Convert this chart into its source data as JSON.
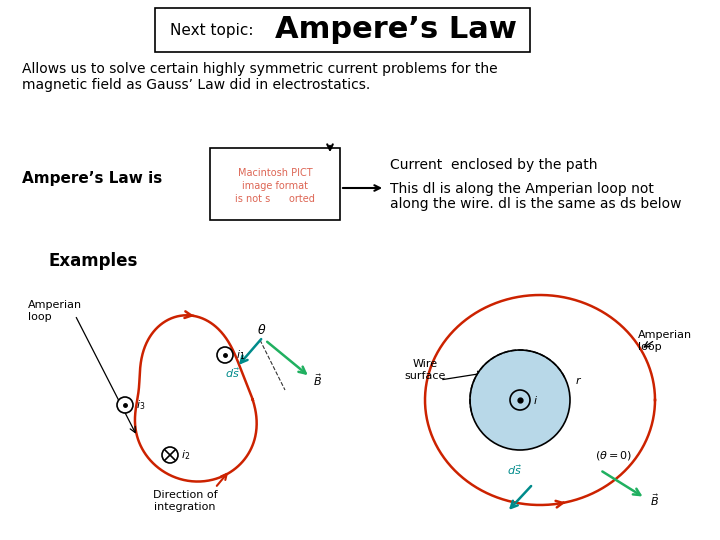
{
  "title_label": "Next topic:",
  "title_main": "Ampere’s Law",
  "subtitle_line1": "Allows us to solve certain highly symmetric current problems for the",
  "subtitle_line2": "magnetic field as Gauss’ Law did in electrostatics.",
  "ampere_label": "Ampere’s Law is",
  "pict_text": "Macintosh PICT\nimage format\nis not s      orted",
  "current_note": "Current  enclosed by the path",
  "dl_note_line1": "This dl is along the Amperian loop not",
  "dl_note_line2": "along the wire. dl is the same as ds below",
  "examples_label": "Examples",
  "bg_color": "#ffffff",
  "text_color": "#000000",
  "red_color": "#cc2200",
  "teal_color": "#008B8B",
  "green_color": "#20b060",
  "light_blue": "#b8d8e8"
}
